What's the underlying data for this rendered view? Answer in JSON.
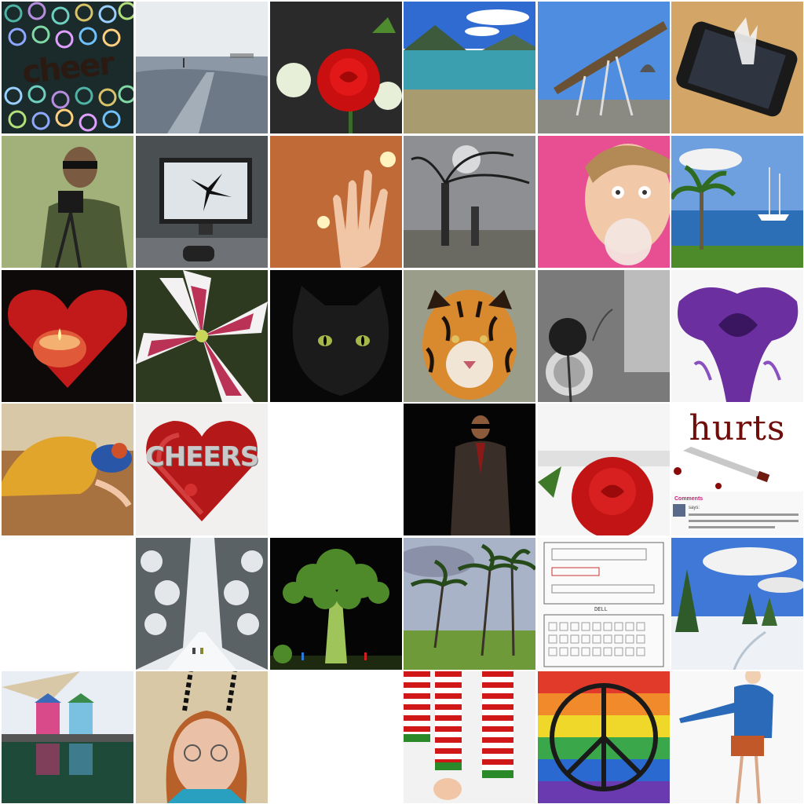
{
  "mosaic": {
    "tiles": [
      {
        "subject": "cheer text on iridescent circles",
        "text": "cheer"
      },
      {
        "subject": "misty frozen beach"
      },
      {
        "subject": "red rose with white flowers"
      },
      {
        "subject": "mountain lake with clouds"
      },
      {
        "subject": "wooden canopy structure"
      },
      {
        "subject": "phone with water splash"
      },
      {
        "subject": "man with camera on tripod"
      },
      {
        "subject": "cracked computer monitor"
      },
      {
        "subject": "hand with candle lights"
      },
      {
        "subject": "bare tree with statue"
      },
      {
        "subject": "woman blowing bubble gum"
      },
      {
        "subject": "palm tree and sailboat"
      },
      {
        "subject": "red heart candle holder"
      },
      {
        "subject": "pink lily flower"
      },
      {
        "subject": "black cat"
      },
      {
        "subject": "tiger face"
      },
      {
        "subject": "black and white rose"
      },
      {
        "subject": "purple iris flower"
      },
      {
        "subject": "person lying on floor in yellow skirt"
      },
      {
        "subject": "red glass heart with cheers letters",
        "text": "CHEERS"
      },
      {
        "subject": "empty"
      },
      {
        "subject": "man in suit on black background"
      },
      {
        "subject": "red rose on white"
      },
      {
        "subject": "hurts text with knife",
        "text": "hurts",
        "caption": "Comments",
        "caption2": "says:"
      },
      {
        "subject": "empty"
      },
      {
        "subject": "snowy forest path"
      },
      {
        "subject": "broccoli tree with tiny figures"
      },
      {
        "subject": "windy palm trees"
      },
      {
        "subject": "sketch of laptop keyboard",
        "text": "DELL"
      },
      {
        "subject": "snowy landscape with fir trees"
      },
      {
        "subject": "beach huts with reflection"
      },
      {
        "subject": "woman with antenna headband"
      },
      {
        "subject": "empty"
      },
      {
        "subject": "striped red white stockings"
      },
      {
        "subject": "rainbow brick wall with peace sign"
      },
      {
        "subject": "drawing of person in blue shirt"
      }
    ]
  }
}
